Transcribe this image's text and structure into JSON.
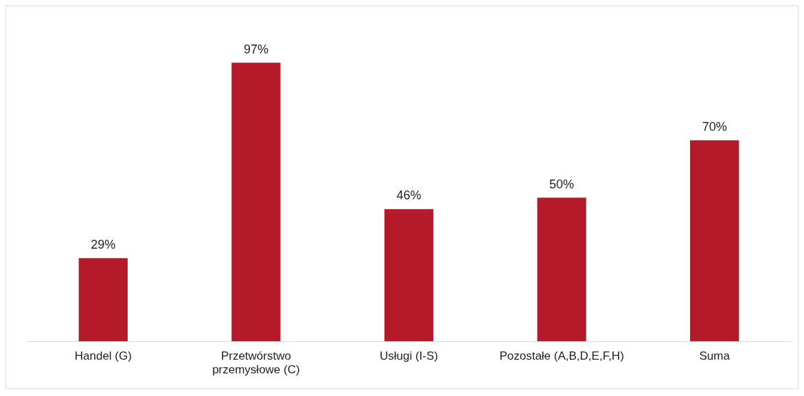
{
  "chart_data": {
    "type": "bar",
    "categories": [
      "Handel (G)",
      "Przetwórstwo przemysłowe (C)",
      "Usługi (I-S)",
      "Pozostałe (A,B,D,E,F,H)",
      "Suma"
    ],
    "values": [
      29,
      97,
      46,
      50,
      70
    ],
    "value_labels": [
      "29%",
      "97%",
      "46%",
      "50%",
      "70%"
    ],
    "color": "#b41a29",
    "grid": false,
    "legend": false
  }
}
